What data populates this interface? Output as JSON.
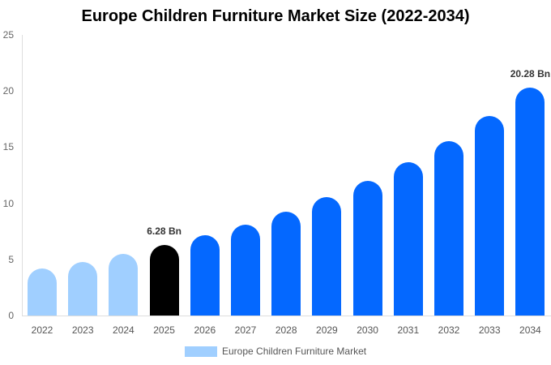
{
  "chart_data": {
    "type": "bar",
    "title": "Europe Children Furniture Market Size (2022-2034)",
    "xlabel": "",
    "ylabel": "",
    "ylim": [
      0,
      25
    ],
    "yticks": [
      0,
      5,
      10,
      15,
      20,
      25
    ],
    "categories": [
      "2022",
      "2023",
      "2024",
      "2025",
      "2026",
      "2027",
      "2028",
      "2029",
      "2030",
      "2031",
      "2032",
      "2033",
      "2034"
    ],
    "series": [
      {
        "name": "Europe Children Furniture Market",
        "values": [
          4.19,
          4.77,
          5.49,
          6.28,
          7.15,
          8.09,
          9.25,
          10.55,
          12.0,
          13.66,
          15.53,
          17.77,
          20.28
        ]
      }
    ],
    "bar_colors": [
      "#a0cfff",
      "#a0cfff",
      "#a0cfff",
      "#000000",
      "#0468ff",
      "#0468ff",
      "#0468ff",
      "#0468ff",
      "#0468ff",
      "#0468ff",
      "#0468ff",
      "#0468ff",
      "#0468ff"
    ],
    "annotations": [
      {
        "category": "2025",
        "text": "6.28 Bn"
      },
      {
        "category": "2034",
        "text": "20.28 Bn"
      }
    ],
    "legend": {
      "position": "bottom",
      "entries": [
        "Europe Children Furniture Market"
      ]
    },
    "grid": false
  }
}
